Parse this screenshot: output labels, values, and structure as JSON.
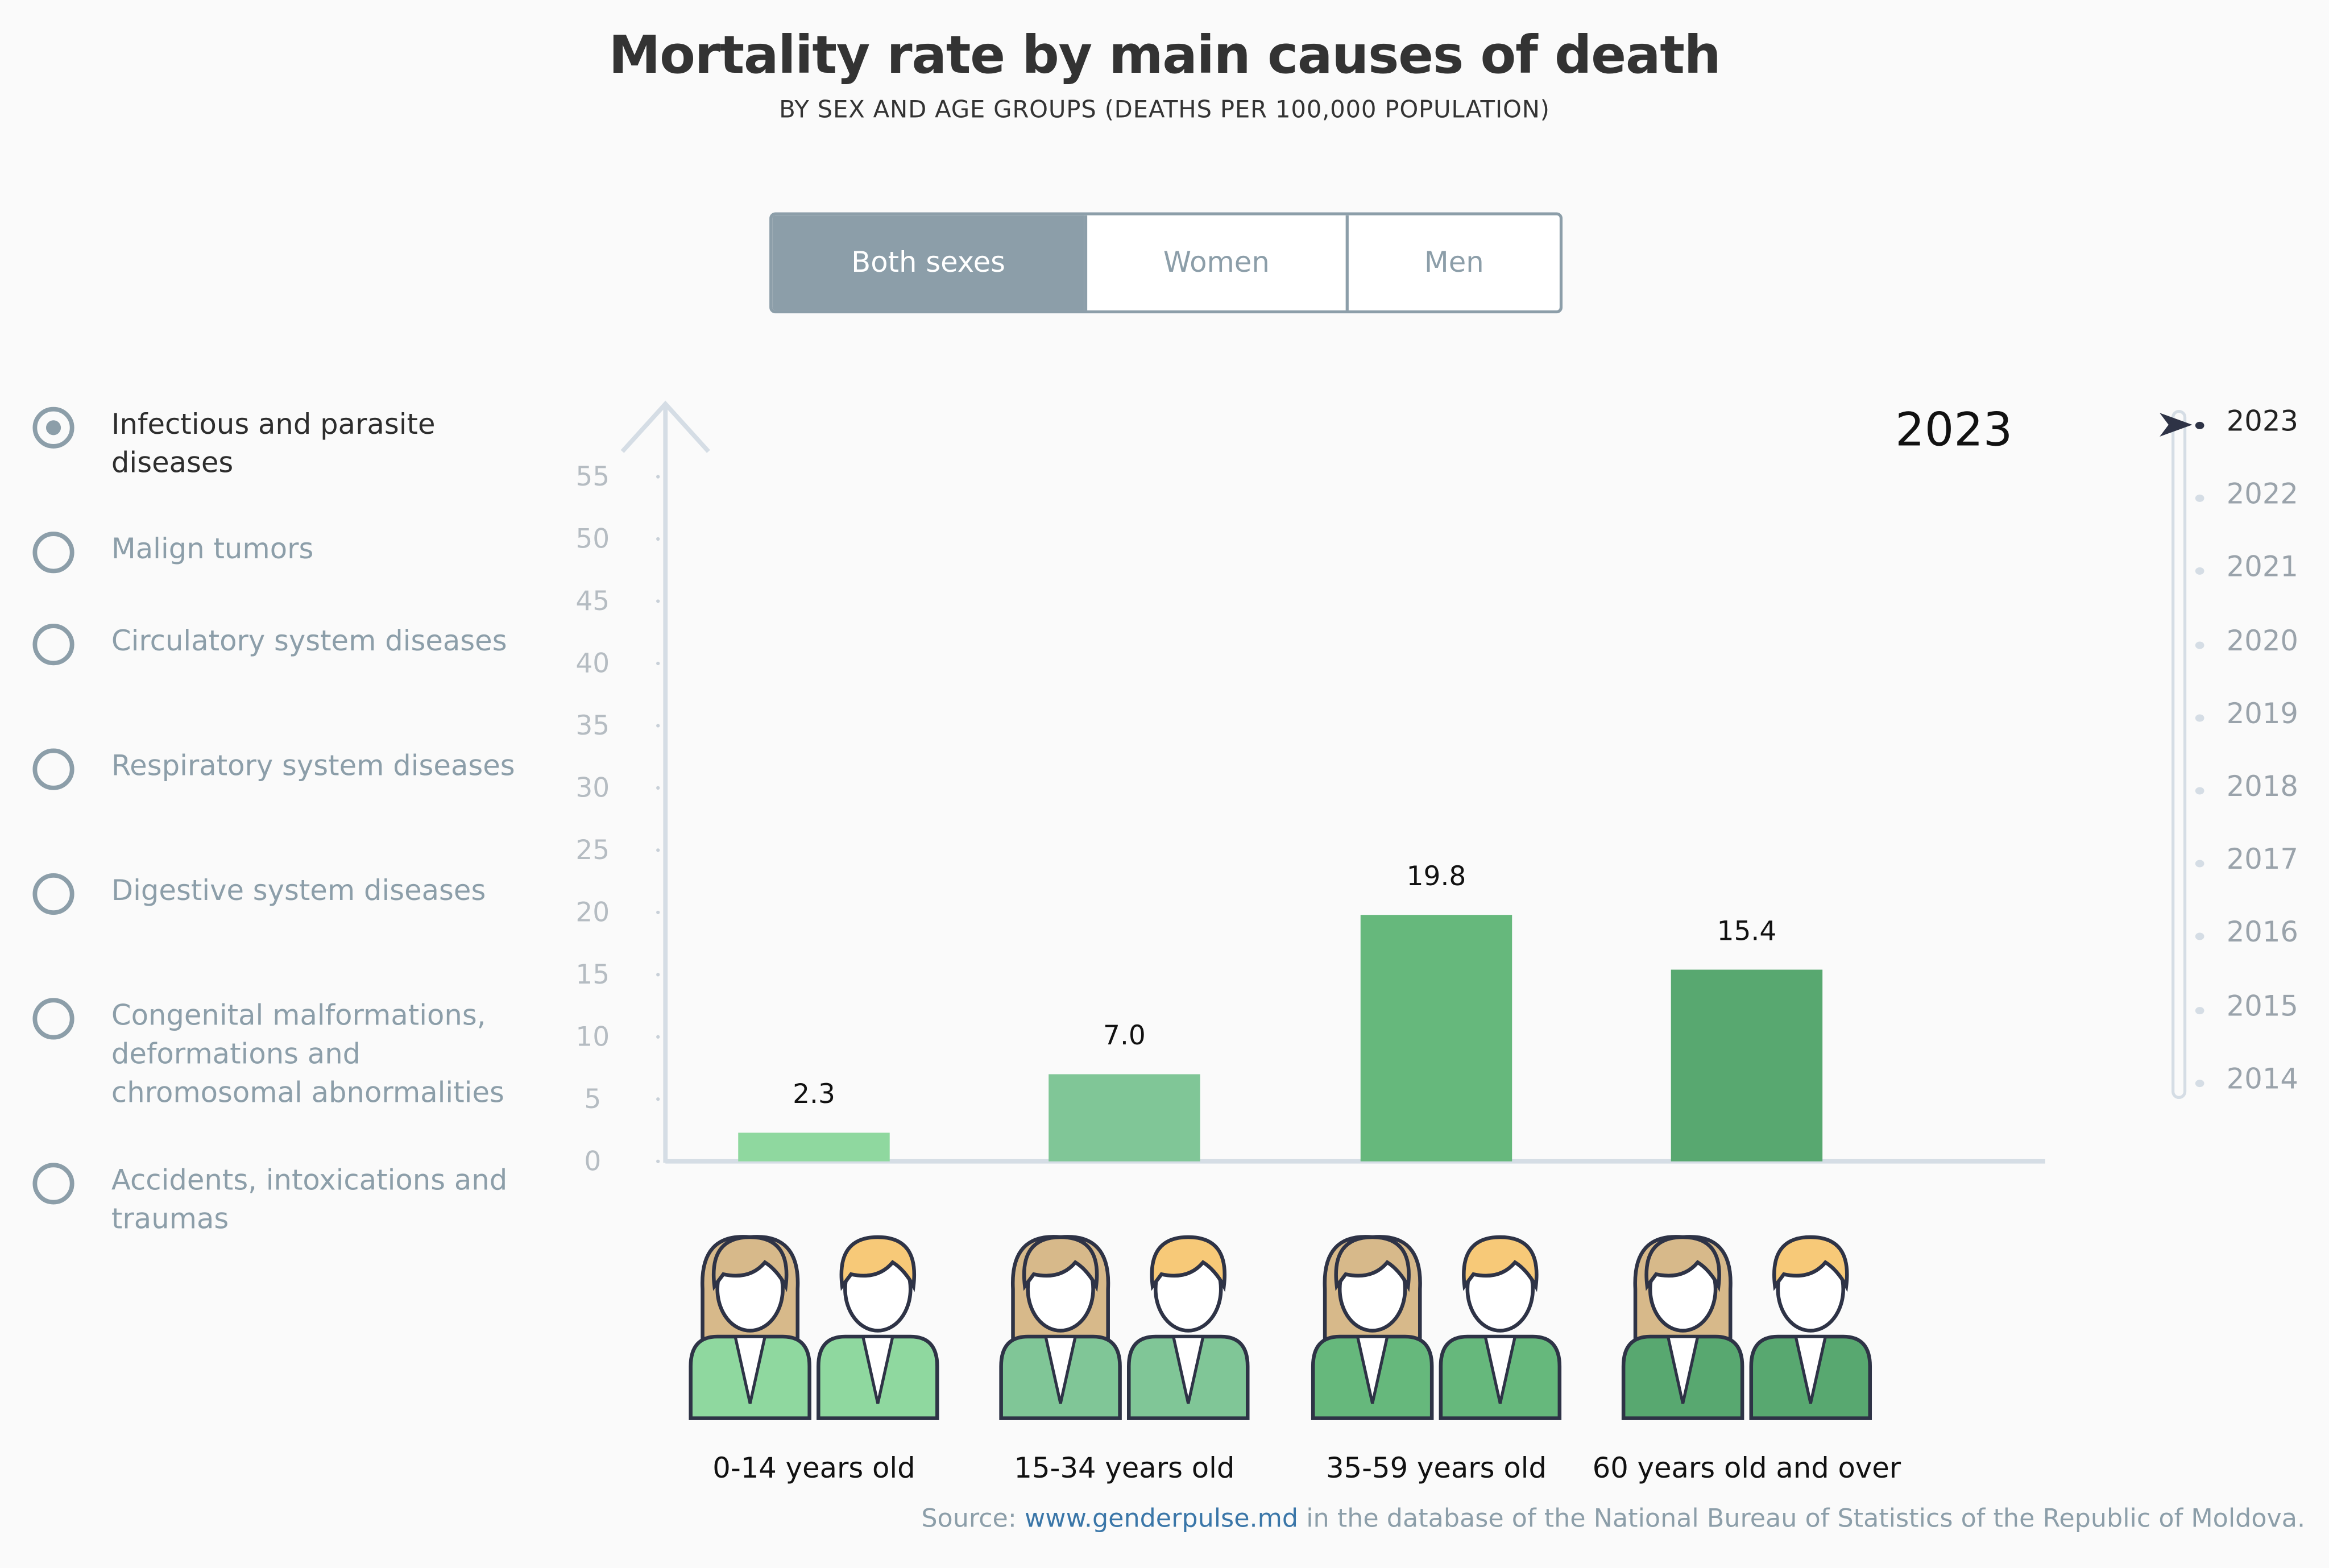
{
  "header": {
    "title": "Mortality rate by main causes of death",
    "subtitle": "BY SEX AND AGE GROUPS (DEATHS PER 100,000 POPULATION)"
  },
  "sex_toggle": {
    "options": [
      "Both sexes",
      "Women",
      "Men"
    ],
    "selected": "Both sexes"
  },
  "causes": {
    "items": [
      {
        "label": "Infectious and parasite diseases",
        "selected": true
      },
      {
        "label": "Malign tumors",
        "selected": false
      },
      {
        "label": "Circulatory system diseases",
        "selected": false
      },
      {
        "label": "Respiratory system diseases",
        "selected": false
      },
      {
        "label": "Digestive system diseases",
        "selected": false
      },
      {
        "label": "Congenital malformations, deformations and chromosomal abnormalities",
        "selected": false
      },
      {
        "label": "Accidents, intoxications and traumas",
        "selected": false
      }
    ]
  },
  "year_selector": {
    "current": "2023",
    "years": [
      "2023",
      "2022",
      "2021",
      "2020",
      "2019",
      "2018",
      "2017",
      "2016",
      "2015",
      "2014"
    ]
  },
  "chart_data": {
    "type": "bar",
    "categories": [
      "0-14 years old",
      "15-34 years old",
      "35-59 years old",
      "60 years old and over"
    ],
    "values": [
      2.3,
      7.0,
      19.8,
      15.4
    ],
    "data_labels": [
      "2.3",
      "7.0",
      "19.8",
      "15.4"
    ],
    "ylim": [
      0,
      55
    ],
    "yticks": [
      "0",
      "5",
      "10",
      "15",
      "20",
      "25",
      "30",
      "35",
      "40",
      "45",
      "50",
      "55"
    ],
    "bar_colors": [
      "#8fd89f",
      "#80c697",
      "#66b87c",
      "#58a870"
    ],
    "grid": false
  },
  "colors": {
    "accent": "#8c9ea9",
    "outline": "#2e3346",
    "hair_brown": "#d7b98a",
    "hair_blond": "#f7c978"
  },
  "footer": {
    "prefix": "Source: ",
    "link": "www.genderpulse.md",
    "suffix": " in the database of the National Bureau of Statistics of the Republic of Moldova."
  }
}
